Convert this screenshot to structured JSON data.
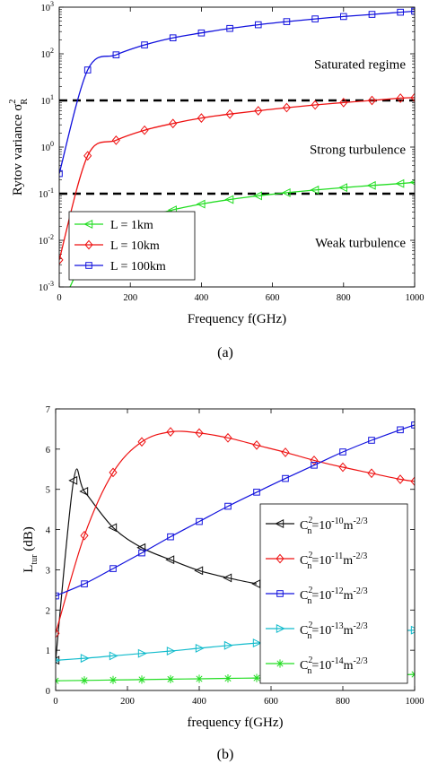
{
  "chart_data": [
    {
      "type": "line",
      "panel_label": "(a)",
      "xlabel": "Frequency f(GHz)",
      "ylabel_main": "Rytov variance σ",
      "ylabel_sup": "2",
      "ylabel_sub": "R",
      "y_scale": "log",
      "xlim": [
        0,
        1000
      ],
      "ylim": [
        0.001,
        1000
      ],
      "x_ticks": [
        "0",
        "200",
        "400",
        "600",
        "800",
        "1000"
      ],
      "y_tick_base": "10",
      "y_tick_exps": [
        "-3",
        "-2",
        "-1",
        "0",
        "1",
        "2",
        "3"
      ],
      "annotations": [
        "Saturated regime",
        "Strong turbulence",
        "Weak turbulence"
      ],
      "thresholds": [
        10,
        0.1
      ],
      "legend_position": "bottom-left",
      "series": [
        {
          "name": "L = 1km",
          "color": "#22dd22",
          "marker": "triangle-left",
          "x": [
            0,
            80,
            160,
            240,
            320,
            400,
            480,
            560,
            640,
            720,
            800,
            880,
            960,
            1000
          ],
          "y": [
            0.0003,
            0.0055,
            0.016,
            0.03,
            0.045,
            0.06,
            0.075,
            0.09,
            0.105,
            0.12,
            0.135,
            0.15,
            0.165,
            0.175
          ]
        },
        {
          "name": "L = 10km",
          "color": "#ee1111",
          "marker": "diamond",
          "x": [
            0,
            80,
            160,
            240,
            320,
            400,
            480,
            560,
            640,
            720,
            800,
            880,
            960,
            1000
          ],
          "y": [
            0.0038,
            0.65,
            1.4,
            2.3,
            3.2,
            4.2,
            5.1,
            6.0,
            7.0,
            8.0,
            9.0,
            10.0,
            11.2,
            11.5
          ]
        },
        {
          "name": "L = 100km",
          "color": "#1111dd",
          "marker": "square",
          "x": [
            0,
            80,
            160,
            240,
            320,
            400,
            480,
            560,
            640,
            720,
            800,
            880,
            960,
            1000
          ],
          "y": [
            0.27,
            45,
            95,
            155,
            220,
            280,
            350,
            420,
            490,
            560,
            630,
            700,
            780,
            820
          ]
        }
      ]
    },
    {
      "type": "line",
      "panel_label": "(b)",
      "xlabel": "frequency f(GHz)",
      "ylabel_main": "L",
      "ylabel_sub": "tur",
      "ylabel_tail": " (dB)",
      "xlim": [
        0,
        1000
      ],
      "ylim": [
        0,
        7
      ],
      "x_ticks": [
        "0",
        "200",
        "400",
        "600",
        "800",
        "1000"
      ],
      "y_ticks": [
        "0",
        "1",
        "2",
        "3",
        "4",
        "5",
        "6",
        "7"
      ],
      "legend_position": "bottom-right",
      "series": [
        {
          "name_parts": [
            "C",
            "2",
            "n",
            "=10",
            "-10",
            "m",
            "-2/3"
          ],
          "color": "#111111",
          "marker": "triangle-left",
          "x": [
            0,
            50,
            80,
            160,
            240,
            320,
            400,
            480,
            560
          ],
          "y": [
            0.75,
            5.22,
            4.95,
            4.05,
            3.55,
            3.25,
            2.98,
            2.8,
            2.65
          ]
        },
        {
          "name_parts": [
            "C",
            "2",
            "n",
            "=10",
            "-11",
            "m",
            "-2/3"
          ],
          "color": "#ee1111",
          "marker": "diamond",
          "x": [
            0,
            80,
            160,
            240,
            320,
            400,
            480,
            560,
            640,
            720,
            800,
            880,
            960,
            1000
          ],
          "y": [
            1.42,
            3.85,
            5.42,
            6.18,
            6.43,
            6.4,
            6.28,
            6.1,
            5.92,
            5.72,
            5.55,
            5.4,
            5.25,
            5.2
          ]
        },
        {
          "name_parts": [
            "C",
            "2",
            "n",
            "=10",
            "-12",
            "m",
            "-2/3"
          ],
          "color": "#1111dd",
          "marker": "square",
          "x": [
            0,
            80,
            160,
            240,
            320,
            400,
            480,
            560,
            640,
            720,
            800,
            880,
            960,
            1000
          ],
          "y": [
            2.35,
            2.65,
            3.03,
            3.42,
            3.82,
            4.2,
            4.58,
            4.93,
            5.27,
            5.6,
            5.93,
            6.22,
            6.48,
            6.6
          ]
        },
        {
          "name_parts": [
            "C",
            "2",
            "n",
            "=10",
            "-13",
            "m",
            "-2/3"
          ],
          "color": "#11bbcc",
          "marker": "triangle-right",
          "x": [
            0,
            80,
            160,
            240,
            320,
            400,
            480,
            560,
            640,
            720,
            800,
            880,
            960,
            1000
          ],
          "y": [
            0.75,
            0.8,
            0.86,
            0.92,
            0.98,
            1.05,
            1.12,
            1.18,
            1.24,
            1.3,
            1.36,
            1.42,
            1.48,
            1.5
          ]
        },
        {
          "name_parts": [
            "C",
            "2",
            "n",
            "=10",
            "-14",
            "m",
            "-2/3"
          ],
          "color": "#22dd22",
          "marker": "asterisk",
          "x": [
            0,
            80,
            160,
            240,
            320,
            400,
            480,
            560,
            640,
            720,
            800,
            880,
            960,
            1000
          ],
          "y": [
            0.24,
            0.25,
            0.26,
            0.27,
            0.28,
            0.29,
            0.3,
            0.31,
            0.32,
            0.33,
            0.35,
            0.37,
            0.39,
            0.4
          ]
        }
      ]
    }
  ]
}
